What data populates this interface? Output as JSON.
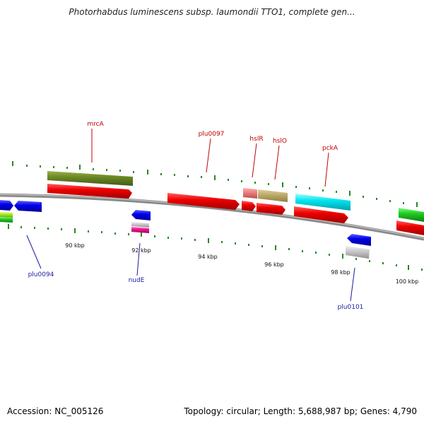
{
  "title": "Photorhabdus luminescens subsp. laumondii TTO1, complete gen...",
  "footer": {
    "accession": "Accession: NC_005126",
    "info": "Topology: circular; Length: 5,688,987 bp; Genes: 4,790"
  },
  "colors": {
    "backbone": "#8a8a8a",
    "tick": "#228b22",
    "label_top": "#c00000",
    "label_bottom": "#1a1aa0"
  },
  "ticks": [
    "90 kbp",
    "92 kbp",
    "94 kbp",
    "96 kbp",
    "98 kbp",
    "100 kbp"
  ],
  "labels": {
    "mrcA": "mrcA",
    "plu0097": "plu0097",
    "hslR": "hslR",
    "hslO": "hslO",
    "pckA": "pckA",
    "plu0094": "plu0094",
    "nudE": "nudE",
    "plu0101": "plu0101"
  }
}
